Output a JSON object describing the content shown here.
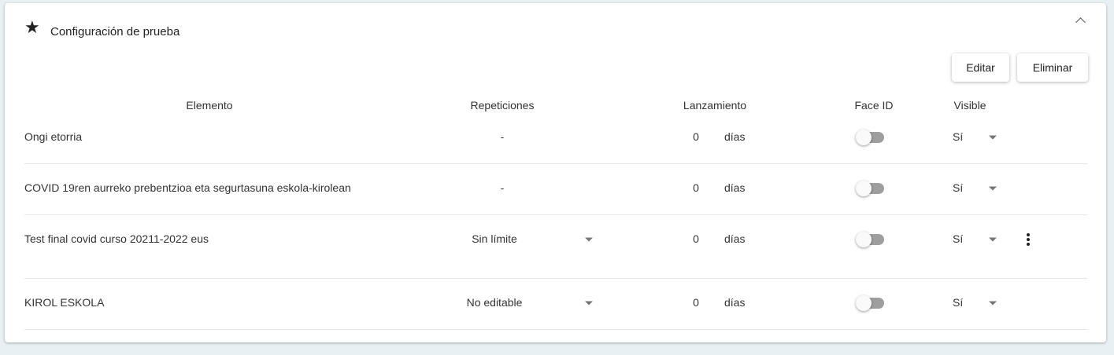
{
  "panel": {
    "title": "Configuración de prueba",
    "icon": "star-icon",
    "collapse_icon": "chevron-up-icon"
  },
  "actions": {
    "edit_label": "Editar",
    "delete_label": "Eliminar"
  },
  "columns": [
    "Elemento",
    "Repeticiones",
    "Lanzamiento",
    "Face ID",
    "Visible"
  ],
  "rows": [
    {
      "element": "Ongi etorria",
      "repetitions": "-",
      "repetitions_dropdown": false,
      "launch": "0",
      "unit": "días",
      "face_id": false,
      "visible": "Sí",
      "menu": false
    },
    {
      "element": "COVID 19ren aurreko prebentzioa eta segurtasuna eskola-kirolean",
      "repetitions": "-",
      "repetitions_dropdown": false,
      "launch": "0",
      "unit": "días",
      "face_id": false,
      "visible": "Sí",
      "menu": false
    },
    {
      "element": "Test final covid curso 20211-2022 eus",
      "repetitions": "Sin límite",
      "repetitions_dropdown": true,
      "launch": "0",
      "unit": "días",
      "face_id": false,
      "visible": "Sí",
      "menu": true
    },
    {
      "element": "KIROL ESKOLA",
      "repetitions": "No editable",
      "repetitions_dropdown": true,
      "launch": "0",
      "unit": "días",
      "face_id": false,
      "visible": "Sí",
      "menu": false
    }
  ]
}
